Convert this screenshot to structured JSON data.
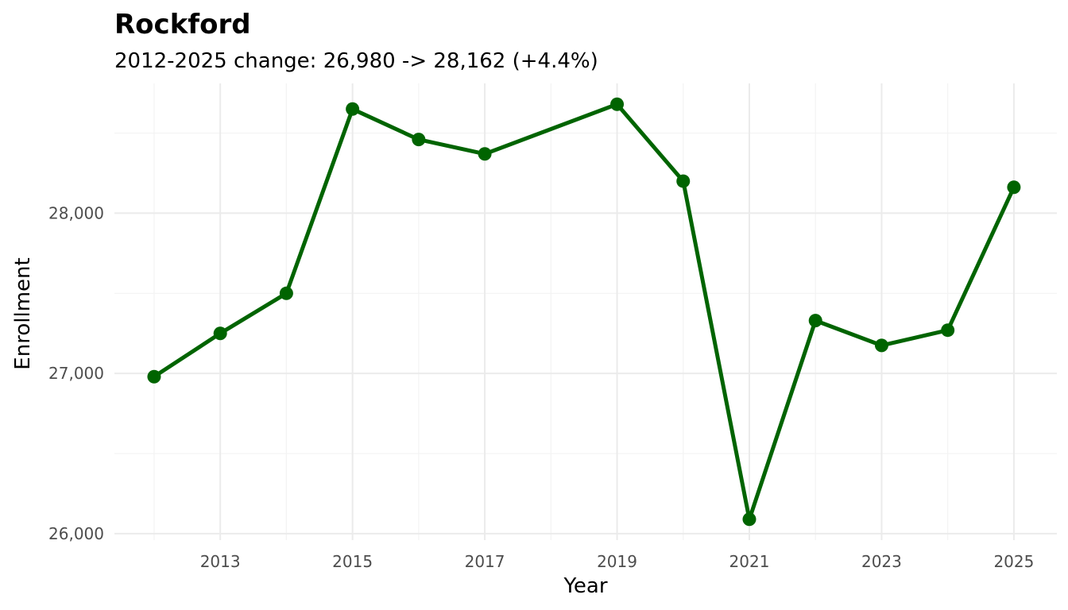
{
  "chart_data": {
    "type": "line",
    "title": "Rockford",
    "subtitle": "2012-2025 change: 26,980 -> 28,162 (+4.4%)",
    "xlabel": "Year",
    "ylabel": "Enrollment",
    "x": [
      2012,
      2013,
      2014,
      2015,
      2016,
      2017,
      2019,
      2020,
      2021,
      2022,
      2023,
      2024,
      2025
    ],
    "series": [
      {
        "values": [
          26980,
          27250,
          27500,
          28650,
          28460,
          28370,
          28680,
          28200,
          26090,
          27330,
          27175,
          27270,
          28162
        ]
      }
    ],
    "x_ticks": [
      2013,
      2015,
      2017,
      2019,
      2021,
      2023,
      2025
    ],
    "x_tick_labels": [
      "2013",
      "2015",
      "2017",
      "2019",
      "2021",
      "2023",
      "2025"
    ],
    "y_ticks": [
      26000,
      27000,
      28000
    ],
    "y_tick_labels": [
      "26,000",
      "27,000",
      "28,000"
    ],
    "xlim": [
      2011.4,
      2025.65
    ],
    "ylim": [
      25960,
      28810
    ],
    "grid": true,
    "line_color": "#006400",
    "legend": "none"
  }
}
